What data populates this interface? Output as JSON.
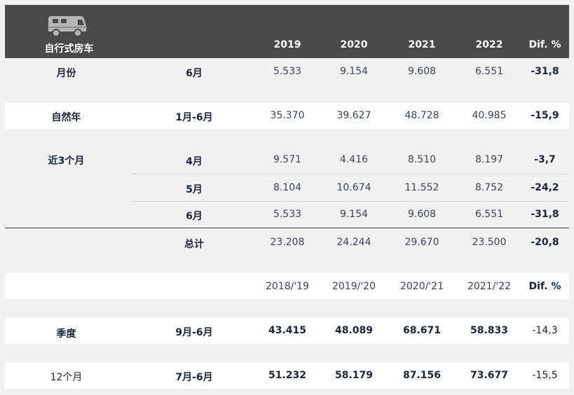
{
  "header": {
    "title": "自行式房车",
    "years": [
      "2019",
      "2020",
      "2021",
      "2022",
      "Dif. %"
    ],
    "icon": "motorhome-icon"
  },
  "rows": {
    "month": {
      "label": "月份",
      "period": "6月",
      "values": [
        "5.533",
        "9.154",
        "9.608",
        "6.551"
      ],
      "diff": "-31,8"
    },
    "ytd": {
      "label": "自然年",
      "period": "1月-6月",
      "values": [
        "35.370",
        "39.627",
        "48.728",
        "40.985"
      ],
      "diff": "-15,9"
    },
    "last3_apr": {
      "label": "近3个月",
      "period": "4月",
      "values": [
        "9.571",
        "4.416",
        "8.510",
        "8.197"
      ],
      "diff": "-3,7"
    },
    "last3_may": {
      "period": "5月",
      "values": [
        "8.104",
        "10.674",
        "11.552",
        "8.752"
      ],
      "diff": "-24,2"
    },
    "last3_jun": {
      "period": "6月",
      "values": [
        "5.533",
        "9.154",
        "9.608",
        "6.551"
      ],
      "diff": "-31,8"
    },
    "last3_total": {
      "period": "总计",
      "values": [
        "23.208",
        "24.244",
        "29.670",
        "23.500"
      ],
      "diff": "-20,8"
    }
  },
  "season_header": {
    "years": [
      "2018/'19",
      "2019/'20",
      "2020/'21",
      "2021/'22"
    ],
    "diff": "Dif. %"
  },
  "season_rows": {
    "season": {
      "label": "季度",
      "period": "9月-6月",
      "values": [
        "43.415",
        "48.089",
        "68.671",
        "58.833"
      ],
      "diff": "-14,3"
    },
    "twelve": {
      "label": "12个月",
      "period": "7月-6月",
      "values": [
        "51.232",
        "58.179",
        "87.156",
        "73.677"
      ],
      "diff": "-15,5"
    }
  }
}
